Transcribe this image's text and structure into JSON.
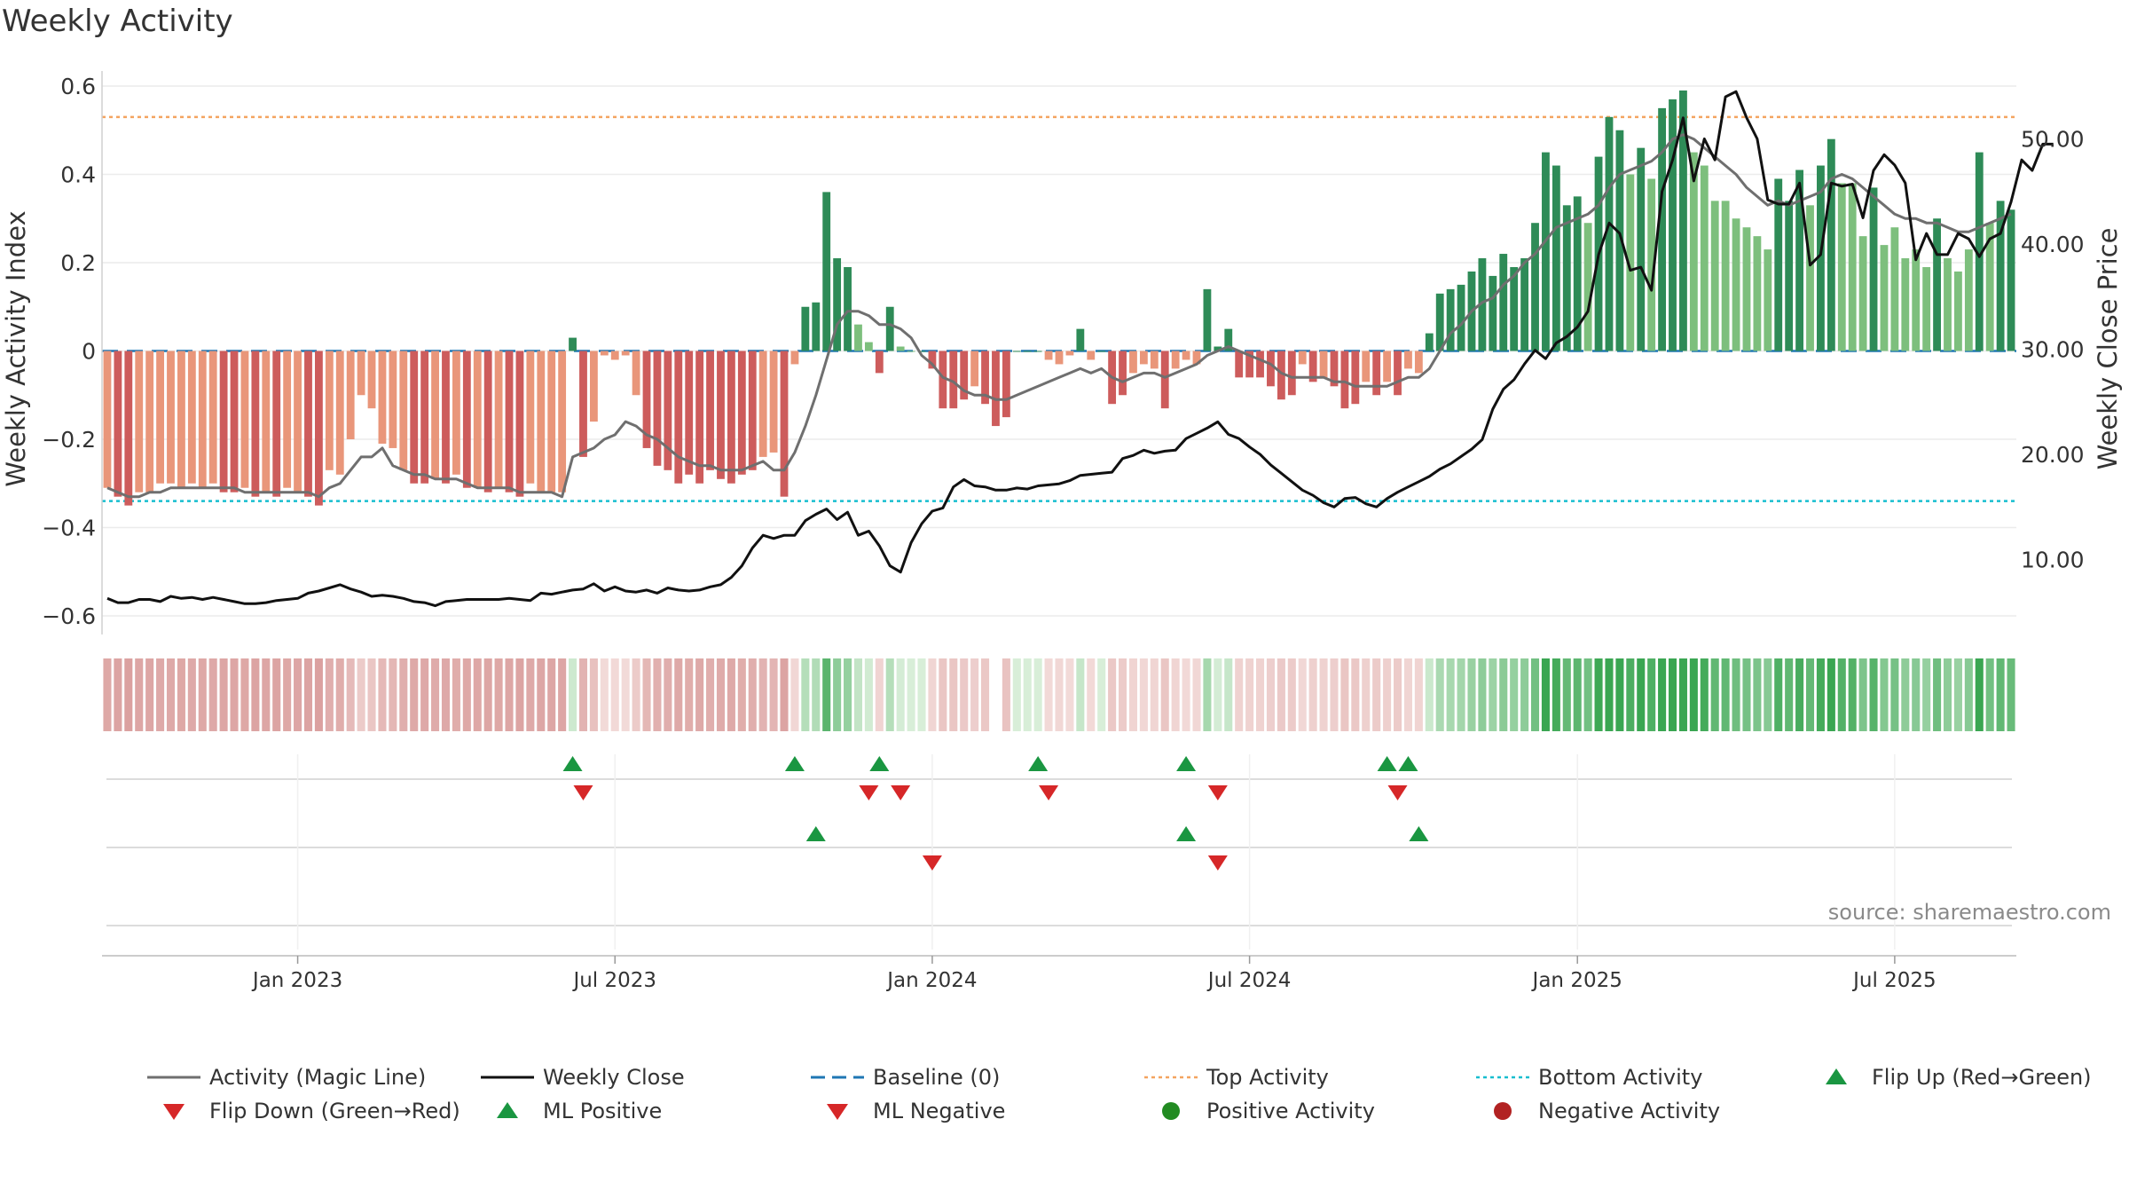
{
  "title": "Weekly Activity",
  "source": "source: sharemaestro.com",
  "colors": {
    "pos_dark": "#2e8b57",
    "pos_light": "#7dbf7d",
    "neg_dark": "#cd5c5c",
    "neg_light": "#e9967a",
    "magic_line": "#6f6f6f",
    "close_line": "#111111",
    "baseline": "#1f77b4",
    "top_line": "#f4a460",
    "bottom_line": "#17becf",
    "flip_up": "#1a9641",
    "flip_down": "#d62728"
  },
  "legend": {
    "magic": "Activity (Magic Line)",
    "close": "Weekly Close",
    "baseline": "Baseline (0)",
    "top": "Top Activity",
    "bottom": "Bottom Activity",
    "flip_up": "Flip Up (Red→Green)",
    "flip_down": "Flip Down (Green→Red)",
    "ml_pos": "ML Positive",
    "ml_neg": "ML Negative",
    "pos_act": "Positive Activity",
    "neg_act": "Negative Activity"
  },
  "chart_data": {
    "type": "bar",
    "title": "Weekly Activity",
    "ylabel": "Weekly Activity Index",
    "y2label": "Weekly Close Price",
    "ylim": [
      -0.6,
      0.6
    ],
    "y2lim": [
      5,
      55
    ],
    "yticks": [
      {
        "v": 0.6,
        "t": "0.6"
      },
      {
        "v": 0.4,
        "t": "0.4"
      },
      {
        "v": 0.2,
        "t": "0.2"
      },
      {
        "v": 0,
        "t": "0"
      },
      {
        "v": -0.2,
        "t": "−0.2"
      },
      {
        "v": -0.4,
        "t": "−0.4"
      },
      {
        "v": -0.6,
        "t": "−0.6"
      }
    ],
    "y2ticks": [
      {
        "v": 50,
        "t": "50.00"
      },
      {
        "v": 40,
        "t": "40.00"
      },
      {
        "v": 30,
        "t": "30.00"
      },
      {
        "v": 20,
        "t": "20.00"
      },
      {
        "v": 10,
        "t": "10.00"
      }
    ],
    "xticks": [
      {
        "week": 18,
        "t": "Jan 2023"
      },
      {
        "week": 48,
        "t": "Jul 2023"
      },
      {
        "week": 78,
        "t": "Jan 2024"
      },
      {
        "week": 108,
        "t": "Jul 2024"
      },
      {
        "week": 139,
        "t": "Jan 2025"
      },
      {
        "week": 169,
        "t": "Jul 2025"
      }
    ],
    "top_activity": 0.53,
    "bottom_activity": -0.34,
    "baseline": 0,
    "activity": [
      -0.31,
      -0.33,
      -0.35,
      -0.32,
      -0.32,
      -0.3,
      -0.3,
      -0.31,
      -0.3,
      -0.31,
      -0.3,
      -0.32,
      -0.32,
      -0.31,
      -0.33,
      -0.32,
      -0.33,
      -0.31,
      -0.32,
      -0.33,
      -0.35,
      -0.27,
      -0.28,
      -0.2,
      -0.1,
      -0.13,
      -0.21,
      -0.22,
      -0.27,
      -0.3,
      -0.3,
      -0.29,
      -0.3,
      -0.28,
      -0.31,
      -0.31,
      -0.32,
      -0.31,
      -0.32,
      -0.33,
      -0.3,
      -0.32,
      -0.32,
      -0.32,
      0.03,
      -0.24,
      -0.16,
      -0.01,
      -0.02,
      -0.01,
      -0.1,
      -0.22,
      -0.26,
      -0.27,
      -0.3,
      -0.28,
      -0.3,
      -0.27,
      -0.29,
      -0.3,
      -0.28,
      -0.27,
      -0.24,
      -0.23,
      -0.33,
      -0.03,
      0.1,
      0.11,
      0.36,
      0.21,
      0.19,
      0.06,
      0.02,
      -0.05,
      0.1,
      0.01,
      0,
      0,
      -0.04,
      -0.13,
      -0.13,
      -0.11,
      -0.08,
      -0.12,
      -0.17,
      -0.15,
      0,
      0,
      0,
      -0.02,
      -0.03,
      -0.01,
      0.05,
      -0.02,
      0,
      -0.12,
      -0.1,
      -0.05,
      -0.03,
      -0.04,
      -0.13,
      -0.04,
      -0.02,
      -0.03,
      0.14,
      0.01,
      0.05,
      -0.06,
      -0.06,
      -0.06,
      -0.08,
      -0.11,
      -0.1,
      -0.03,
      -0.07,
      -0.06,
      -0.08,
      -0.13,
      -0.12,
      -0.07,
      -0.1,
      -0.07,
      -0.1,
      -0.04,
      -0.05,
      0.04,
      0.13,
      0.14,
      0.15,
      0.18,
      0.21,
      0.17,
      0.22,
      0.19,
      0.21,
      0.29,
      0.45,
      0.42,
      0.33,
      0.35,
      0.29,
      0.44,
      0.53,
      0.5,
      0.4,
      0.46,
      0.39,
      0.55,
      0.57,
      0.59,
      0.45,
      0.42,
      0.34,
      0.34,
      0.3,
      0.28,
      0.26,
      0.23,
      0.39,
      0.34,
      0.41,
      0.33,
      0.42,
      0.48,
      0.38,
      0.38,
      0.26,
      0.37,
      0.24,
      0.28,
      0.21,
      0.23,
      0.19,
      0.3,
      0.21,
      0.18,
      0.23,
      0.45,
      0.29,
      0.34,
      0.32
    ],
    "magic_line": [
      -0.31,
      -0.32,
      -0.33,
      -0.33,
      -0.32,
      -0.32,
      -0.31,
      -0.31,
      -0.31,
      -0.31,
      -0.31,
      -0.31,
      -0.31,
      -0.32,
      -0.32,
      -0.32,
      -0.32,
      -0.32,
      -0.32,
      -0.32,
      -0.33,
      -0.31,
      -0.3,
      -0.27,
      -0.24,
      -0.24,
      -0.22,
      -0.26,
      -0.27,
      -0.28,
      -0.28,
      -0.29,
      -0.29,
      -0.29,
      -0.3,
      -0.31,
      -0.31,
      -0.31,
      -0.31,
      -0.32,
      -0.32,
      -0.32,
      -0.32,
      -0.33,
      -0.24,
      -0.23,
      -0.22,
      -0.2,
      -0.19,
      -0.16,
      -0.17,
      -0.19,
      -0.2,
      -0.22,
      -0.24,
      -0.25,
      -0.26,
      -0.26,
      -0.27,
      -0.27,
      -0.27,
      -0.26,
      -0.25,
      -0.27,
      -0.27,
      -0.23,
      -0.17,
      -0.1,
      -0.02,
      0.06,
      0.09,
      0.09,
      0.08,
      0.06,
      0.06,
      0.05,
      0.03,
      -0.01,
      -0.03,
      -0.06,
      -0.07,
      -0.09,
      -0.1,
      -0.1,
      -0.11,
      -0.11,
      -0.1,
      -0.09,
      -0.08,
      -0.07,
      -0.06,
      -0.05,
      -0.04,
      -0.05,
      -0.04,
      -0.06,
      -0.07,
      -0.06,
      -0.05,
      -0.05,
      -0.06,
      -0.05,
      -0.04,
      -0.03,
      -0.01,
      0,
      0.01,
      0,
      -0.01,
      -0.02,
      -0.03,
      -0.05,
      -0.06,
      -0.06,
      -0.06,
      -0.06,
      -0.07,
      -0.07,
      -0.08,
      -0.08,
      -0.08,
      -0.08,
      -0.07,
      -0.06,
      -0.06,
      -0.04,
      0,
      0.04,
      0.06,
      0.09,
      0.11,
      0.12,
      0.15,
      0.17,
      0.2,
      0.22,
      0.25,
      0.28,
      0.29,
      0.3,
      0.31,
      0.33,
      0.37,
      0.4,
      0.41,
      0.42,
      0.43,
      0.45,
      0.48,
      0.49,
      0.48,
      0.46,
      0.44,
      0.42,
      0.4,
      0.37,
      0.35,
      0.33,
      0.34,
      0.33,
      0.34,
      0.35,
      0.36,
      0.39,
      0.4,
      0.39,
      0.37,
      0.35,
      0.33,
      0.31,
      0.3,
      0.3,
      0.29,
      0.29,
      0.28,
      0.27,
      0.27,
      0.28,
      0.29,
      0.3,
      0.31
    ],
    "weekly_close": [
      6.3,
      5.9,
      5.9,
      6.2,
      6.2,
      6.0,
      6.5,
      6.3,
      6.4,
      6.2,
      6.4,
      6.2,
      6.0,
      5.8,
      5.8,
      5.9,
      6.1,
      6.2,
      6.3,
      6.8,
      7.0,
      7.3,
      7.6,
      7.2,
      6.9,
      6.5,
      6.6,
      6.5,
      6.3,
      6.0,
      5.9,
      5.6,
      6.0,
      6.1,
      6.2,
      6.2,
      6.2,
      6.2,
      6.3,
      6.2,
      6.1,
      6.8,
      6.7,
      6.9,
      7.1,
      7.2,
      7.7,
      7.0,
      7.4,
      7.0,
      6.9,
      7.1,
      6.8,
      7.3,
      7.1,
      7.0,
      7.1,
      7.4,
      7.6,
      8.3,
      9.4,
      11.1,
      12.3,
      12.0,
      12.3,
      12.3,
      13.7,
      14.3,
      14.8,
      13.8,
      14.5,
      12.3,
      12.7,
      11.3,
      9.4,
      8.8,
      11.6,
      13.4,
      14.6,
      14.9,
      16.9,
      17.6,
      17.0,
      16.9,
      16.6,
      16.6,
      16.8,
      16.7,
      17.0,
      17.1,
      17.2,
      17.5,
      18.0,
      18.1,
      18.2,
      18.3,
      19.6,
      19.9,
      20.4,
      20.1,
      20.3,
      20.4,
      21.5,
      22.0,
      22.5,
      23.1,
      21.9,
      21.5,
      20.7,
      20.0,
      19.0,
      18.2,
      17.4,
      16.6,
      16.1,
      15.4,
      15.0,
      15.8,
      15.9,
      15.3,
      15.0,
      15.8,
      16.4,
      16.9,
      17.4,
      17.9,
      18.6,
      19.1,
      19.8,
      20.5,
      21.4,
      24.3,
      26.2,
      27.1,
      28.6,
      29.9,
      29.1,
      30.6,
      31.2,
      32.1,
      33.6,
      39.0,
      42.0,
      41.0,
      37.5,
      37.8,
      35.6,
      45.0,
      48.0,
      52.0,
      46.0,
      50.0,
      48.0,
      54.0,
      54.5,
      52.0,
      50.0,
      44.2,
      43.8,
      43.8,
      45.8,
      38.0,
      39.0,
      45.8,
      45.5,
      45.7,
      42.5,
      47.0,
      48.5,
      47.5,
      45.8,
      38.5,
      41.0,
      39.0,
      39.0,
      41.0,
      40.5,
      38.8,
      40.5,
      41.0,
      44.0,
      48.0,
      47.0,
      49.5,
      49.5
    ],
    "activity_strip": "shade of each weekly activity value",
    "flip_up_weeks": [
      44,
      65,
      73,
      88,
      102,
      121,
      123
    ],
    "flip_down_weeks": [
      45,
      72,
      75,
      89,
      105,
      122
    ],
    "ml_positive_weeks": [
      67,
      102,
      124
    ],
    "ml_negative_weeks": [
      78,
      105
    ],
    "strip_gap_weeks": [
      84
    ]
  }
}
